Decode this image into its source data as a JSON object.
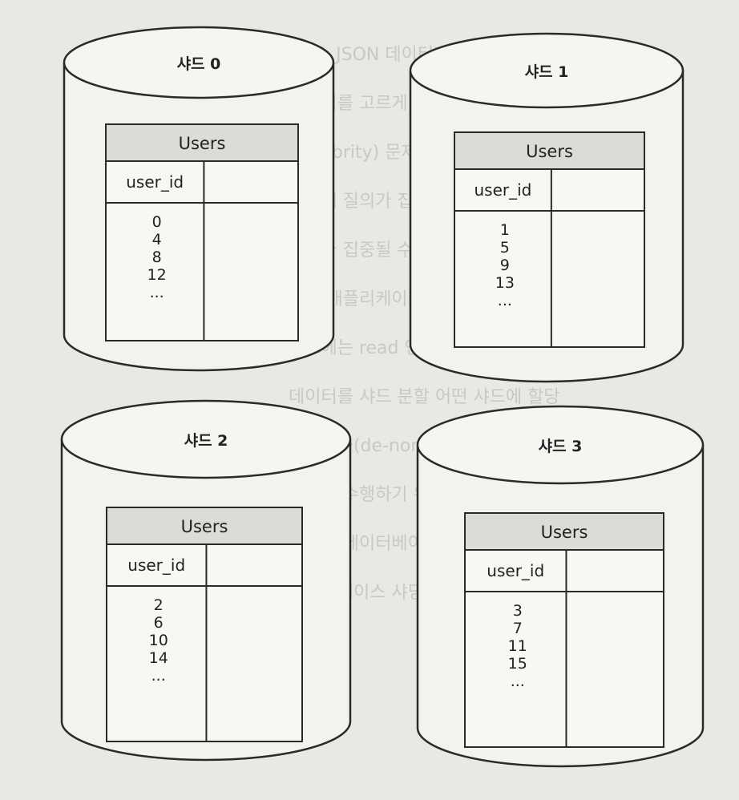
{
  "background_lines": [
    "(SQL JSON 데이터베이스 샤딩 키 key)",
    "데이터를 고르게 분배하기 위해 가변적으로",
    "(celebrity) 문제 (hotspot key problem)",
    "샤드에 질의가 집중되어 서버에 과부하가",
    "서버가 집중될 수 있다 재분배가 필요하다",
    "소셜 애플리케이션(social application)",
    "샤드에는 read 연산 부하가 걸리게 될 것이다",
    "데이터를 샤드 분할 어떤 샤드에 할당",
    "비정규화(de-normalization) 조인하기 힘들",
    "연산을 수행하기 위해 데이터를 가져와",
    "관계형 데이터베이스 질의 조인 힘들다",
    "데이터베이스 샤딩을 적용한 아키텍처"
  ],
  "shards": [
    {
      "title": "샤드 0",
      "table": "Users",
      "column": "user_id",
      "values": [
        "0",
        "4",
        "8",
        "12",
        "..."
      ]
    },
    {
      "title": "샤드 1",
      "table": "Users",
      "column": "user_id",
      "values": [
        "1",
        "5",
        "9",
        "13",
        "..."
      ]
    },
    {
      "title": "샤드 2",
      "table": "Users",
      "column": "user_id",
      "values": [
        "2",
        "6",
        "10",
        "14",
        "..."
      ]
    },
    {
      "title": "샤드 3",
      "table": "Users",
      "column": "user_id",
      "values": [
        "3",
        "7",
        "11",
        "15",
        "..."
      ]
    }
  ]
}
